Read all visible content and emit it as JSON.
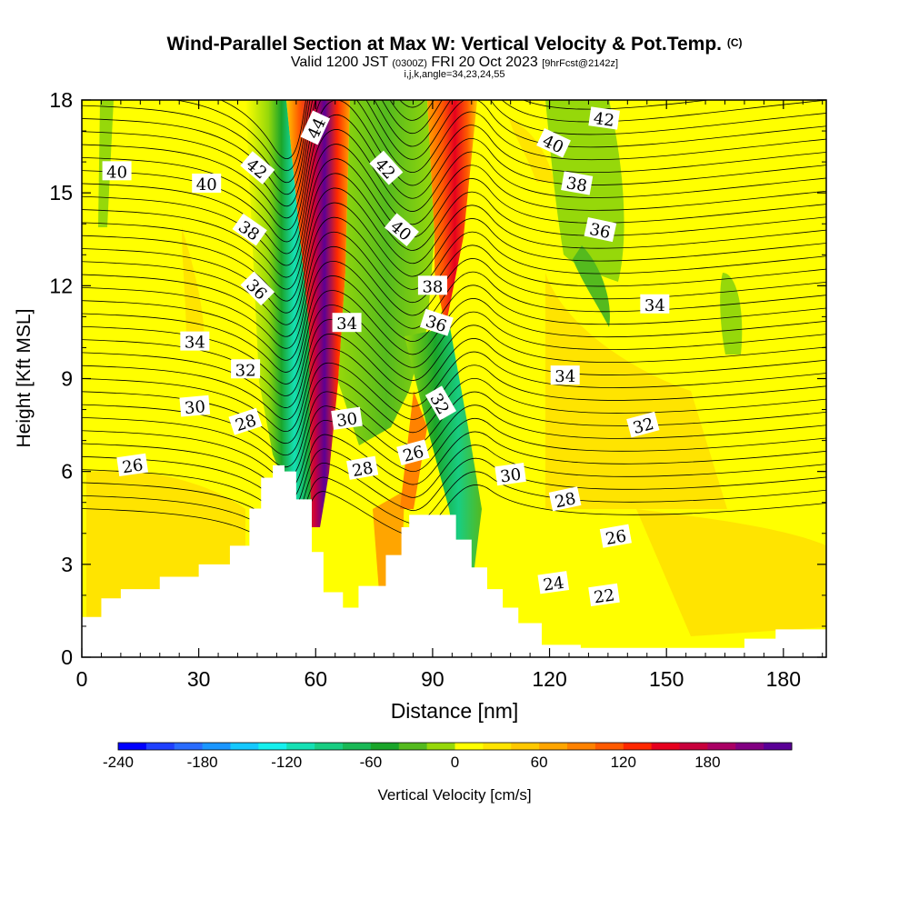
{
  "chart_data": {
    "type": "contour",
    "title": "Wind-Parallel Section at Max W: Vertical Velocity & Pot.Temp.",
    "title_mark": "(C)",
    "subtitle": {
      "valid": "Valid 1200 JST",
      "utc": "(0300Z)",
      "date": "FRI 20 Oct 2023",
      "forecast": "[9hrFcst@2142z]"
    },
    "indices": "i,j,k,angle=34,23,24,55",
    "xlabel": "Distance [nm]",
    "ylabel": "Height [Kft MSL]",
    "xlim": [
      0,
      191
    ],
    "ylim": [
      0,
      18
    ],
    "x_ticks": [
      "0",
      "30",
      "60",
      "90",
      "120",
      "150",
      "180"
    ],
    "y_ticks": [
      "0",
      "3",
      "6",
      "9",
      "12",
      "15",
      "18"
    ],
    "colorbar": {
      "label": "Vertical Velocity [cm/s]",
      "tick_labels": [
        "-240",
        "-180",
        "-120",
        "-60",
        "0",
        "60",
        "120",
        "180"
      ],
      "colors": [
        "#0000ff",
        "#1f40ff",
        "#2a6cff",
        "#1a96ff",
        "#14c8ff",
        "#14f0ee",
        "#14e0b4",
        "#18cd82",
        "#19b856",
        "#1aa52a",
        "#54ba1e",
        "#96d80a",
        "#ffff00",
        "#ffe400",
        "#ffc800",
        "#ffa500",
        "#ff8200",
        "#ff5a00",
        "#ff2800",
        "#e6001e",
        "#c8003c",
        "#aa0064",
        "#820082",
        "#5a0096"
      ]
    },
    "terrain_kft": [
      [
        0,
        1.3
      ],
      [
        5,
        1.9
      ],
      [
        10,
        2.2
      ],
      [
        20,
        2.6
      ],
      [
        30,
        3.0
      ],
      [
        38,
        3.6
      ],
      [
        43,
        4.8
      ],
      [
        46,
        5.8
      ],
      [
        49,
        6.2
      ],
      [
        52,
        6.0
      ],
      [
        55,
        5.1
      ],
      [
        59,
        3.4
      ],
      [
        62,
        2.1
      ],
      [
        67,
        1.6
      ],
      [
        71,
        2.3
      ],
      [
        78,
        3.3
      ],
      [
        82,
        4.2
      ],
      [
        84,
        4.6
      ],
      [
        93,
        4.6
      ],
      [
        96,
        3.8
      ],
      [
        100,
        2.9
      ],
      [
        104,
        2.2
      ],
      [
        108,
        1.6
      ],
      [
        112,
        1.1
      ],
      [
        118,
        0.4
      ],
      [
        128,
        0.3
      ],
      [
        160,
        0.3
      ],
      [
        170,
        0.6
      ],
      [
        178,
        0.9
      ],
      [
        191,
        0.9
      ]
    ],
    "theta_labels_C": [
      {
        "v": "26",
        "x": 13,
        "y": 6.2,
        "rot": -8
      },
      {
        "v": "28",
        "x": 42,
        "y": 7.6,
        "rot": -18
      },
      {
        "v": "30",
        "x": 29,
        "y": 8.1,
        "rot": -5
      },
      {
        "v": "32",
        "x": 42,
        "y": 9.3,
        "rot": 0
      },
      {
        "v": "34",
        "x": 29,
        "y": 10.2,
        "rot": 0
      },
      {
        "v": "36",
        "x": 45,
        "y": 11.9,
        "rot": 45
      },
      {
        "v": "38",
        "x": 43,
        "y": 13.8,
        "rot": 35
      },
      {
        "v": "40",
        "x": 9,
        "y": 15.7,
        "rot": 0
      },
      {
        "v": "40",
        "x": 32,
        "y": 15.3,
        "rot": 0
      },
      {
        "v": "42",
        "x": 45,
        "y": 15.8,
        "rot": 40
      },
      {
        "v": "44",
        "x": 60,
        "y": 17.1,
        "rot": -65
      },
      {
        "v": "34",
        "x": 68,
        "y": 10.8,
        "rot": 0
      },
      {
        "v": "30",
        "x": 68,
        "y": 7.7,
        "rot": -8
      },
      {
        "v": "28",
        "x": 72,
        "y": 6.1,
        "rot": -10
      },
      {
        "v": "26",
        "x": 85,
        "y": 6.6,
        "rot": -15
      },
      {
        "v": "42",
        "x": 78,
        "y": 15.8,
        "rot": 48
      },
      {
        "v": "40",
        "x": 82,
        "y": 13.8,
        "rot": 40
      },
      {
        "v": "38",
        "x": 90,
        "y": 12.0,
        "rot": 0
      },
      {
        "v": "36",
        "x": 91,
        "y": 10.8,
        "rot": 18
      },
      {
        "v": "32",
        "x": 92,
        "y": 8.2,
        "rot": 60
      },
      {
        "v": "30",
        "x": 110,
        "y": 5.9,
        "rot": -8
      },
      {
        "v": "28",
        "x": 124,
        "y": 5.1,
        "rot": -12
      },
      {
        "v": "26",
        "x": 137,
        "y": 3.9,
        "rot": -10
      },
      {
        "v": "24",
        "x": 121,
        "y": 2.4,
        "rot": -8
      },
      {
        "v": "22",
        "x": 134,
        "y": 2.0,
        "rot": -8
      },
      {
        "v": "34",
        "x": 124,
        "y": 9.1,
        "rot": 0
      },
      {
        "v": "32",
        "x": 144,
        "y": 7.5,
        "rot": -15
      },
      {
        "v": "34",
        "x": 147,
        "y": 11.4,
        "rot": 0
      },
      {
        "v": "36",
        "x": 133,
        "y": 13.8,
        "rot": 12
      },
      {
        "v": "38",
        "x": 127,
        "y": 15.3,
        "rot": 10
      },
      {
        "v": "40",
        "x": 121,
        "y": 16.6,
        "rot": 25
      },
      {
        "v": "42",
        "x": 134,
        "y": 17.4,
        "rot": 8
      }
    ]
  }
}
